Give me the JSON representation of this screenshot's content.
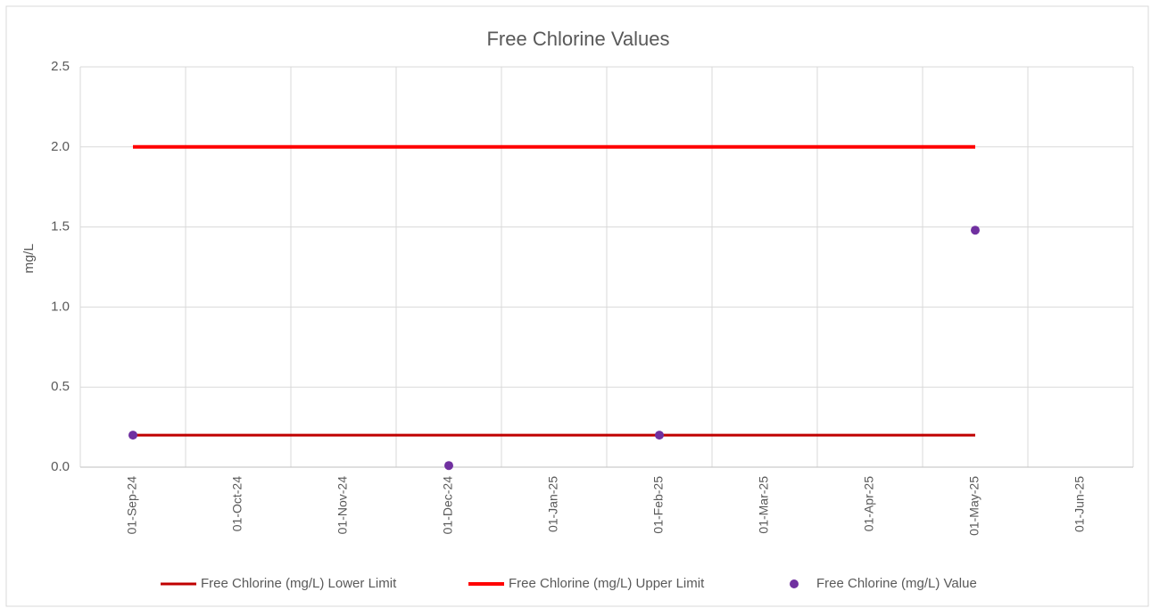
{
  "chart_data": {
    "type": "line",
    "title": "Free Chlorine Values",
    "y_label": "mg/L",
    "categories": [
      "01-Sep-24",
      "01-Oct-24",
      "01-Nov-24",
      "01-Dec-24",
      "01-Jan-25",
      "01-Feb-25",
      "01-Mar-25",
      "01-Apr-25",
      "01-May-25",
      "01-Jun-25"
    ],
    "series": [
      {
        "name": "Free Chlorine (mg/L) Lower Limit",
        "color": "#c00000",
        "style": "line",
        "values": [
          0.2,
          0.2,
          0.2,
          0.2,
          0.2,
          0.2,
          0.2,
          0.2,
          0.2,
          null
        ]
      },
      {
        "name": "Free Chlorine (mg/L) Upper Limit",
        "color": "#ff0000",
        "style": "line",
        "values": [
          2.0,
          2.0,
          2.0,
          2.0,
          2.0,
          2.0,
          2.0,
          2.0,
          2.0,
          null
        ]
      },
      {
        "name": "Free Chlorine (mg/L) Value",
        "color": "#7030a0",
        "style": "marker",
        "values": [
          0.2,
          null,
          null,
          0.01,
          null,
          0.2,
          null,
          null,
          1.48,
          null
        ]
      }
    ],
    "ylim": [
      0,
      2.5
    ],
    "yticks": [
      {
        "value": 0,
        "label": "0.0"
      },
      0.5,
      {
        "value": 1,
        "label": "1.0"
      },
      1.5,
      {
        "value": 2,
        "label": "2.0"
      },
      2.5
    ],
    "grid": true,
    "legend": "bottom"
  }
}
